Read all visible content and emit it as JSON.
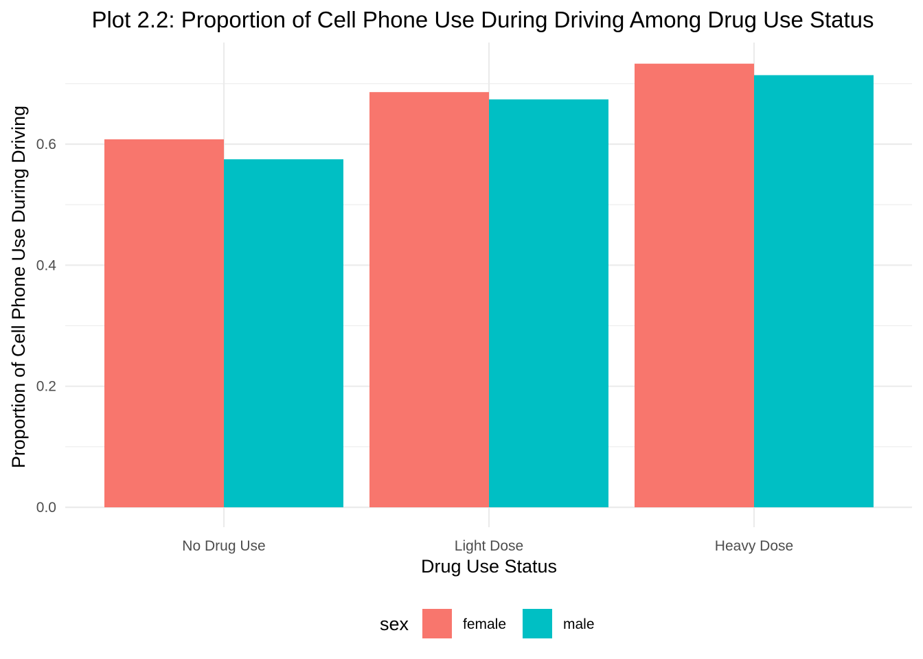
{
  "chart_data": {
    "type": "bar",
    "title": "Plot 2.2: Proportion of Cell Phone Use During Driving Among Drug Use Status",
    "xlabel": "Drug Use Status",
    "ylabel": "Proportion of Cell Phone Use During Driving",
    "categories": [
      "No Drug Use",
      "Light Dose",
      "Heavy Dose"
    ],
    "series": [
      {
        "name": "female",
        "color": "#F8766D",
        "values": [
          0.608,
          0.686,
          0.733
        ]
      },
      {
        "name": "male",
        "color": "#00BFC4",
        "values": [
          0.575,
          0.674,
          0.714
        ]
      }
    ],
    "ylim": [
      0,
      0.75
    ],
    "yticks": [
      0.0,
      0.2,
      0.4,
      0.6
    ],
    "ytick_labels": [
      "0.0",
      "0.2",
      "0.4",
      "0.6"
    ],
    "grid": true,
    "legend": {
      "title": "sex",
      "position": "bottom"
    }
  }
}
